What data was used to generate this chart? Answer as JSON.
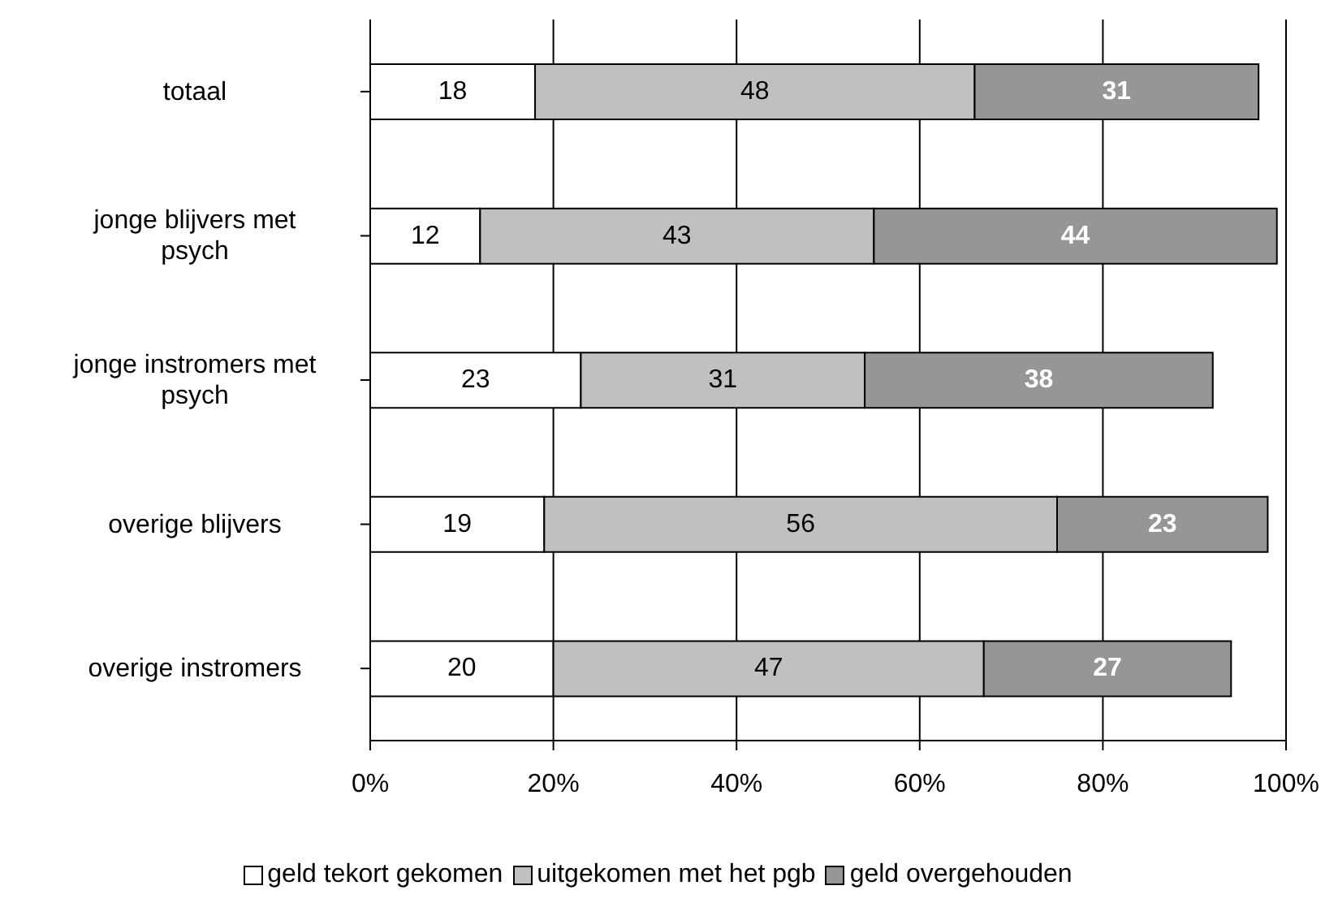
{
  "chart_data": {
    "type": "bar",
    "orientation": "horizontal",
    "stacked": true,
    "data_labels": true,
    "categories": [
      "totaal",
      "jonge blijvers met psych",
      "jonge instromers met psych",
      "overige blijvers",
      "overige instromers"
    ],
    "series": [
      {
        "name": "geld tekort gekomen",
        "color": "#ffffff",
        "values": [
          18,
          12,
          23,
          19,
          20
        ]
      },
      {
        "name": "uitgekomen met het pgb",
        "color": "#c0c0c0",
        "values": [
          48,
          43,
          31,
          56,
          47
        ]
      },
      {
        "name": "geld overgehouden",
        "color": "#969696",
        "values": [
          31,
          44,
          38,
          23,
          27
        ]
      }
    ],
    "xlim": [
      0,
      100
    ],
    "xticks": [
      {
        "value": 0,
        "label": "0%"
      },
      {
        "value": 20,
        "label": "20%"
      },
      {
        "value": 40,
        "label": "40%"
      },
      {
        "value": 60,
        "label": "60%"
      },
      {
        "value": 80,
        "label": "80%"
      },
      {
        "value": 100,
        "label": "100%"
      }
    ],
    "grid": "x",
    "legend": "bottom"
  }
}
